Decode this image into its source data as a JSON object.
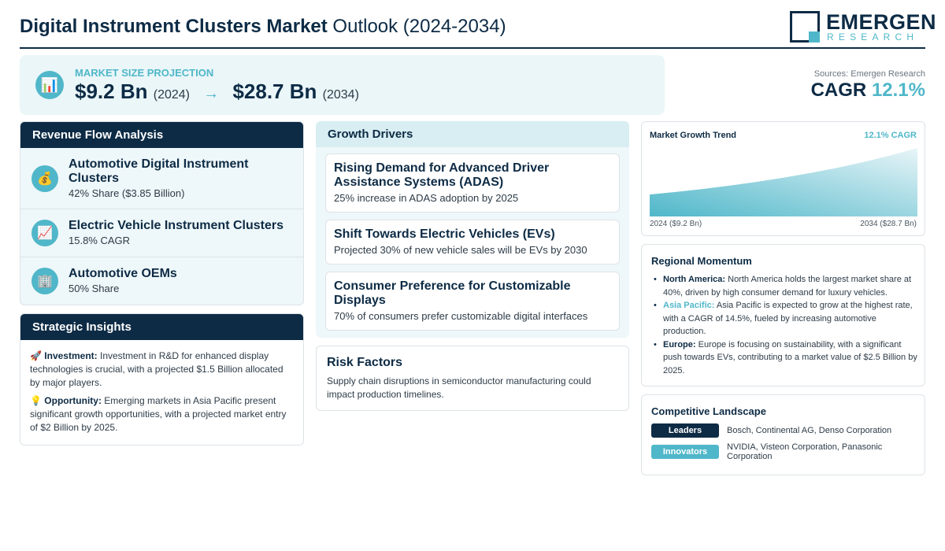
{
  "header": {
    "title_bold": "Digital Instrument Clusters Market",
    "title_rest": "Outlook (2024-2034)",
    "logo_word": "EMERGEN",
    "logo_sub": "RESEARCH"
  },
  "market_size": {
    "icon": "chart-icon",
    "label": "MARKET SIZE PROJECTION",
    "start_value": "$9.2 Bn",
    "start_year": "(2024)",
    "arrow": "→",
    "end_value": "$28.7 Bn",
    "end_year": "(2034)"
  },
  "cagr": {
    "sources": "Sources: Emergen Research",
    "label": "CAGR",
    "value": "12.1%"
  },
  "revenue_flow": {
    "title": "Revenue Flow Analysis",
    "items": [
      {
        "icon": "money-bag-icon",
        "title": "Automotive Digital Instrument Clusters",
        "sub": "42% Share ($3.85 Billion)"
      },
      {
        "icon": "trend-up-icon",
        "title": "Electric Vehicle Instrument Clusters",
        "sub": "15.8% CAGR"
      },
      {
        "icon": "office-building-icon",
        "title": "Automotive OEMs",
        "sub": "50% Share"
      }
    ]
  },
  "strategic_insights": {
    "title": "Strategic Insights",
    "items": [
      {
        "icon": "rocket-icon",
        "label": "Investment:",
        "text": "Investment in R&D for enhanced display technologies is crucial, with a projected $1.5 Billion allocated by major players."
      },
      {
        "icon": "lightbulb-icon",
        "label": "Opportunity:",
        "text": "Emerging markets in Asia Pacific present significant growth opportunities, with a projected market entry of $2 Billion by 2025."
      }
    ]
  },
  "growth_drivers": {
    "title": "Growth Drivers",
    "items": [
      {
        "title": "Rising Demand for Advanced Driver Assistance Systems (ADAS)",
        "sub": "25% increase in ADAS adoption by 2025"
      },
      {
        "title": "Shift Towards Electric Vehicles (EVs)",
        "sub": "Projected 30% of new vehicle sales will be EVs by 2030"
      },
      {
        "title": "Consumer Preference for Customizable Displays",
        "sub": "70% of consumers prefer customizable digital interfaces"
      }
    ]
  },
  "risk_factors": {
    "title": "Risk Factors",
    "text": "Supply chain disruptions in semiconductor manufacturing could impact production timelines."
  },
  "growth_trend": {
    "title": "Market Growth Trend",
    "cagr_label": "12.1% CAGR",
    "start_label": "2024 ($9.2 Bn)",
    "end_label": "2034 ($28.7 Bn)",
    "colors": {
      "fill_top": "#e8f5f8",
      "fill_bottom": "#4fb7c9"
    }
  },
  "chart_data": {
    "type": "area",
    "title": "Market Growth Trend",
    "x": [
      2024,
      2034
    ],
    "series": [
      {
        "values": [
          9.2,
          28.7
        ]
      }
    ],
    "xlabel": "",
    "ylabel": ""
  },
  "regional_momentum": {
    "title": "Regional Momentum",
    "items": [
      {
        "label": "North America:",
        "accent": false,
        "text": "North America holds the largest market share at 40%, driven by high consumer demand for luxury vehicles."
      },
      {
        "label": "Asia Pacific:",
        "accent": true,
        "text": "Asia Pacific is expected to grow at the highest rate, with a CAGR of 14.5%, fueled by increasing automotive production."
      },
      {
        "label": "Europe:",
        "accent": false,
        "text": "Europe is focusing on sustainability, with a significant push towards EVs, contributing to a market value of $2.5 Billion by 2025."
      }
    ]
  },
  "competitive_landscape": {
    "title": "Competitive Landscape",
    "leaders_label": "Leaders",
    "leaders": "Bosch, Continental AG, Denso Corporation",
    "innovators_label": "Innovators",
    "innovators": "NVIDIA, Visteon Corporation, Panasonic Corporation"
  },
  "colors": {
    "navy": "#0d2b45",
    "accent": "#4fb7c9",
    "light_bg": "#eaf6f8"
  }
}
